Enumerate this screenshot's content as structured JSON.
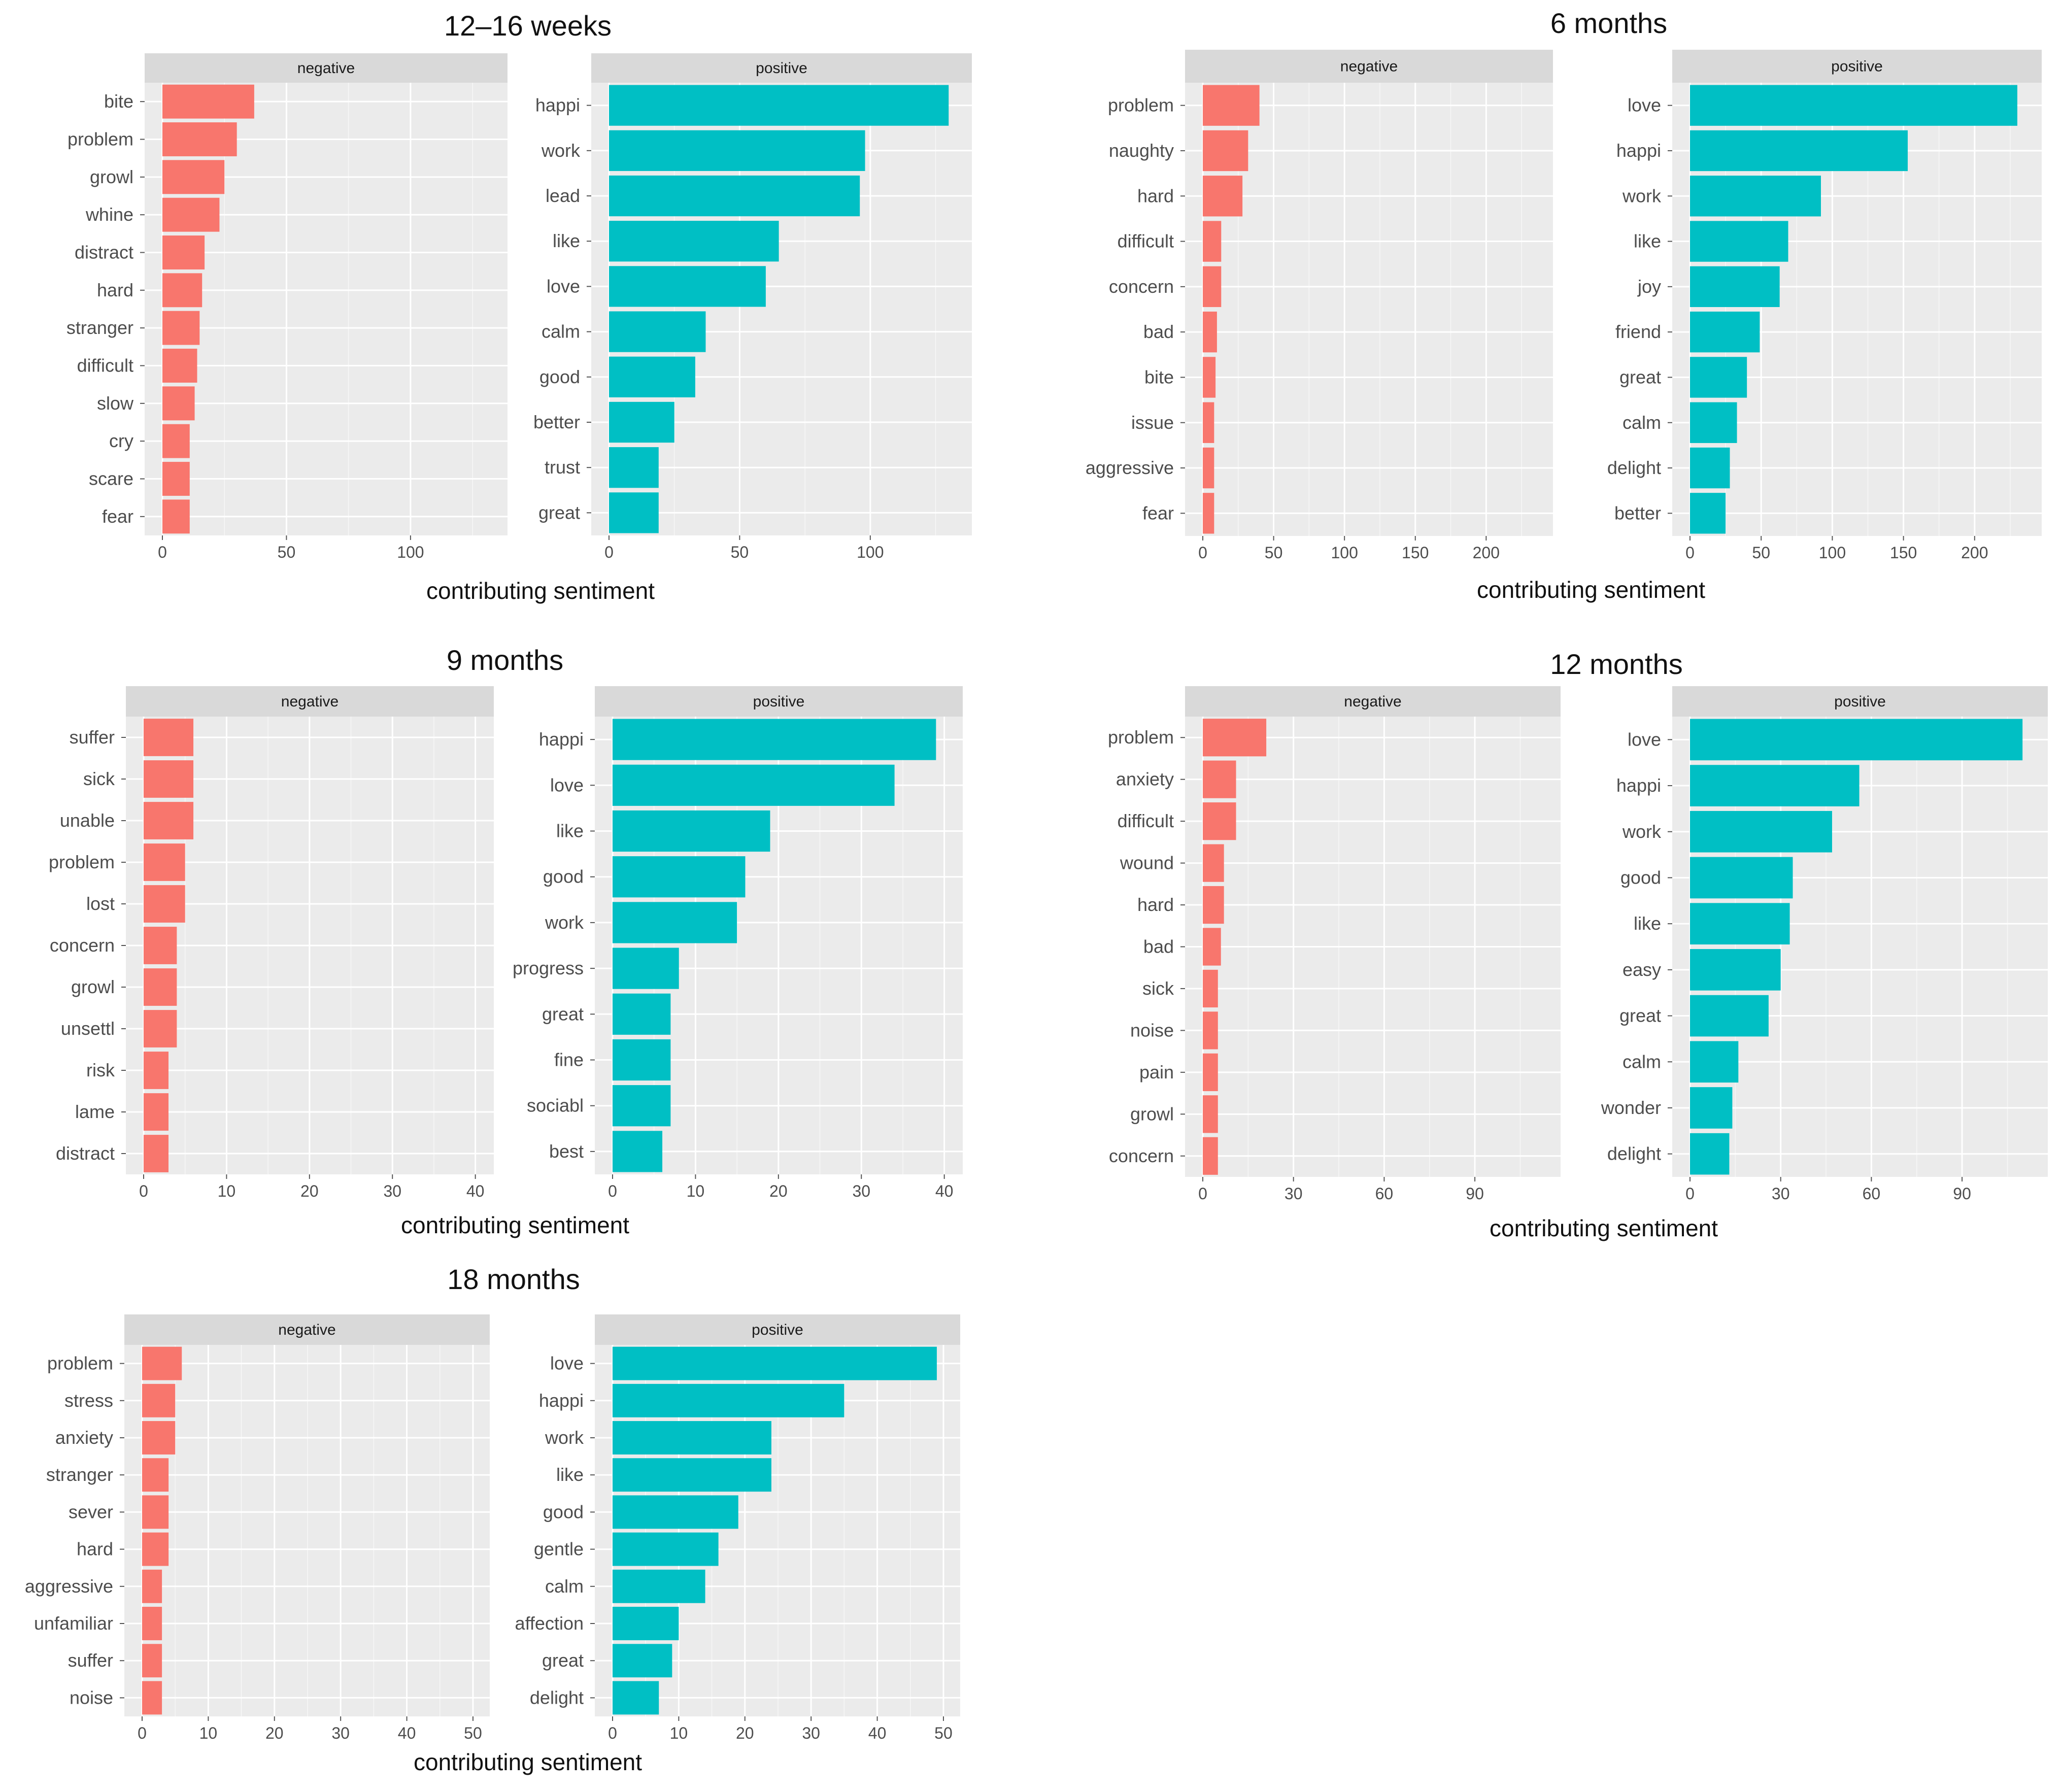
{
  "x_axis_caption": "contributing sentiment",
  "facet_labels": {
    "negative": "negative",
    "positive": "positive"
  },
  "colors": {
    "negative": "#F8766D",
    "positive": "#00BFC4",
    "panel_bg": "#EBEBEB",
    "strip_bg": "#D9D9D9",
    "grid": "#FFFFFF",
    "text": "#4D4D4D"
  },
  "chart_data": [
    {
      "type": "bar",
      "orientation": "horizontal",
      "title": "12–16 weeks",
      "xlabel": "contributing sentiment",
      "panels": [
        {
          "facet": "negative",
          "categories": [
            "bite",
            "problem",
            "growl",
            "whine",
            "distract",
            "hard",
            "stranger",
            "difficult",
            "slow",
            "cry",
            "scare",
            "fear"
          ],
          "values": [
            37,
            30,
            25,
            23,
            17,
            16,
            15,
            14,
            13,
            11,
            11,
            11
          ],
          "xlim": [
            0,
            135
          ],
          "xticks": [
            0,
            50,
            100
          ]
        },
        {
          "facet": "positive",
          "categories": [
            "happi",
            "work",
            "lead",
            "like",
            "love",
            "calm",
            "good",
            "better",
            "trust",
            "great"
          ],
          "values": [
            130,
            98,
            96,
            65,
            60,
            37,
            33,
            25,
            19,
            19
          ],
          "xlim": [
            0,
            135
          ],
          "xticks": [
            0,
            50,
            100
          ]
        }
      ]
    },
    {
      "type": "bar",
      "orientation": "horizontal",
      "title": "6 months",
      "xlabel": "contributing sentiment",
      "panels": [
        {
          "facet": "negative",
          "categories": [
            "problem",
            "naughty",
            "hard",
            "difficult",
            "concern",
            "bad",
            "bite",
            "issue",
            "aggressive",
            "fear"
          ],
          "values": [
            40,
            32,
            28,
            13,
            13,
            10,
            9,
            8,
            8,
            8
          ],
          "xlim": [
            0,
            240
          ],
          "xticks": [
            0,
            50,
            100,
            150,
            200
          ]
        },
        {
          "facet": "positive",
          "categories": [
            "love",
            "happi",
            "work",
            "like",
            "joy",
            "friend",
            "great",
            "calm",
            "delight",
            "better"
          ],
          "values": [
            230,
            153,
            92,
            69,
            63,
            49,
            40,
            33,
            28,
            25
          ],
          "xlim": [
            0,
            240
          ],
          "xticks": [
            0,
            50,
            100,
            150,
            200
          ]
        }
      ]
    },
    {
      "type": "bar",
      "orientation": "horizontal",
      "title": "9 months",
      "xlabel": "contributing sentiment",
      "panels": [
        {
          "facet": "negative",
          "categories": [
            "suffer",
            "sick",
            "unable",
            "problem",
            "lost",
            "concern",
            "growl",
            "unsettl",
            "risk",
            "lame",
            "distract"
          ],
          "values": [
            6,
            6,
            6,
            5,
            5,
            4,
            4,
            4,
            3,
            3,
            3
          ],
          "xlim": [
            0,
            41
          ],
          "xticks": [
            0,
            10,
            20,
            30,
            40
          ]
        },
        {
          "facet": "positive",
          "categories": [
            "happi",
            "love",
            "like",
            "good",
            "work",
            "progress",
            "great",
            "fine",
            "sociabl",
            "best"
          ],
          "values": [
            39,
            34,
            19,
            16,
            15,
            8,
            7,
            7,
            7,
            6
          ],
          "xlim": [
            0,
            41
          ],
          "xticks": [
            0,
            10,
            20,
            30,
            40
          ]
        }
      ]
    },
    {
      "type": "bar",
      "orientation": "horizontal",
      "title": "12 months",
      "xlabel": "contributing sentiment",
      "panels": [
        {
          "facet": "negative",
          "categories": [
            "problem",
            "anxiety",
            "difficult",
            "wound",
            "hard",
            "bad",
            "sick",
            "noise",
            "pain",
            "growl",
            "concern"
          ],
          "values": [
            21,
            11,
            11,
            7,
            7,
            6,
            5,
            5,
            5,
            5,
            5
          ],
          "xlim": [
            0,
            115
          ],
          "xticks": [
            0,
            30,
            60,
            90
          ]
        },
        {
          "facet": "positive",
          "categories": [
            "love",
            "happi",
            "work",
            "good",
            "like",
            "easy",
            "great",
            "calm",
            "wonder",
            "delight"
          ],
          "values": [
            110,
            56,
            47,
            34,
            33,
            30,
            26,
            16,
            14,
            13
          ],
          "xlim": [
            0,
            115
          ],
          "xticks": [
            0,
            30,
            60,
            90
          ]
        }
      ]
    },
    {
      "type": "bar",
      "orientation": "horizontal",
      "title": "18 months",
      "xlabel": "contributing sentiment",
      "panels": [
        {
          "facet": "negative",
          "categories": [
            "problem",
            "stress",
            "anxiety",
            "stranger",
            "sever",
            "hard",
            "aggressive",
            "unfamiliar",
            "suffer",
            "noise"
          ],
          "values": [
            6,
            5,
            5,
            4,
            4,
            4,
            3,
            3,
            3,
            3
          ],
          "xlim": [
            0,
            51
          ],
          "xticks": [
            0,
            10,
            20,
            30,
            40,
            50
          ]
        },
        {
          "facet": "positive",
          "categories": [
            "love",
            "happi",
            "work",
            "like",
            "good",
            "gentle",
            "calm",
            "affection",
            "great",
            "delight"
          ],
          "values": [
            49,
            35,
            24,
            24,
            19,
            16,
            14,
            10,
            9,
            7
          ],
          "xlim": [
            0,
            51
          ],
          "xticks": [
            0,
            10,
            20,
            30,
            40,
            50
          ]
        }
      ]
    }
  ]
}
